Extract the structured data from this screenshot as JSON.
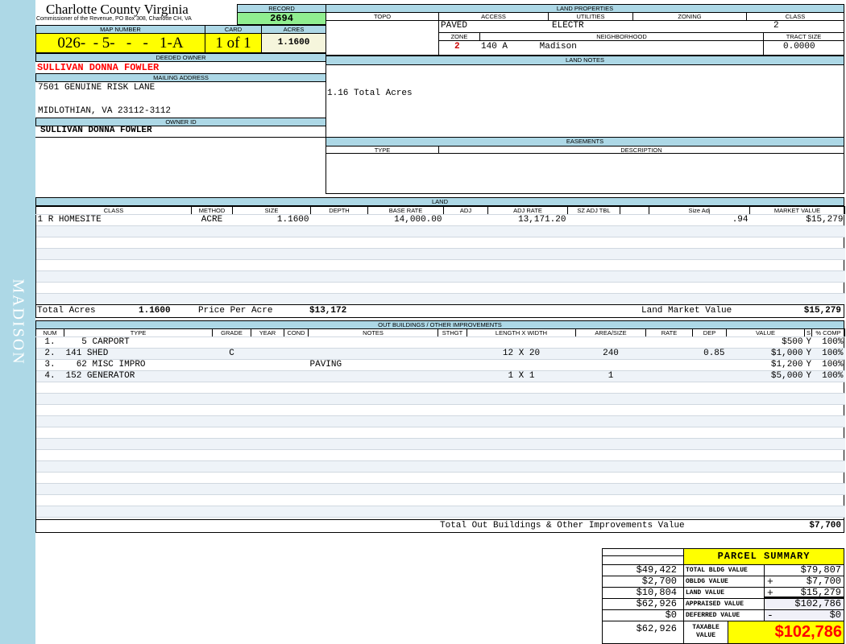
{
  "sidebar": {
    "district": "MADISON"
  },
  "header": {
    "title": "Charlotte County Virginia",
    "subtitle": "Commissioner of the Revenue, PO Box 308, Charlotte CH, VA"
  },
  "record": {
    "label": "RECORD",
    "value": "2694"
  },
  "map": {
    "label": "MAP NUMBER",
    "value": "026-  - 5-   -   -   1-A",
    "card_label": "CARD",
    "card": "1 of 1",
    "acres_label": "ACRES",
    "acres": "1.1600"
  },
  "owner": {
    "deeded_label": "DEEDED OWNER",
    "deeded": "SULLIVAN DONNA FOWLER",
    "mailing_label": "MAILING ADDRESS",
    "address1": "7501 GENUINE RISK LANE",
    "address2": "MIDLOTHIAN, VA 23112-3112",
    "owner_id_label": "OWNER ID",
    "owner_id": "SULLIVAN DONNA FOWLER"
  },
  "land_properties": {
    "label": "LAND PROPERTIES",
    "topo_label": "TOPO",
    "access_label": "ACCESS",
    "utilities_label": "UTILITIES",
    "zoning_label": "ZONING",
    "class_label": "CLASS",
    "access": "PAVED",
    "utilities": "ELECTR",
    "class": "2",
    "zone_label": "ZONE",
    "neighborhood_label": "NEIGHBORHOOD",
    "tract_label": "TRACT SIZE",
    "zone": "2",
    "neighborhood": "140 A      Madison",
    "tract": "0.0000"
  },
  "land_notes": {
    "label": "LAND NOTES",
    "text": "1.16 Total Acres"
  },
  "easements": {
    "label": "EASEMENTS",
    "type_label": "TYPE",
    "desc_label": "DESCRIPTION"
  },
  "land": {
    "label": "LAND",
    "columns": [
      "CLASS",
      "METHOD",
      "SIZE",
      "DEPTH",
      "BASE RATE",
      "ADJ",
      "ADJ RATE",
      "SZ ADJ TBL",
      "",
      "Size Adj",
      "MARKET VALUE"
    ],
    "rows": [
      [
        "1 R HOMESITE",
        "ACRE",
        "1.1600",
        "",
        "14,000.00",
        "",
        "13,171.20",
        "",
        "",
        ".94",
        "$15,279"
      ]
    ],
    "total_acres_label": "Total Acres",
    "total_acres": "1.1600",
    "ppa_label": "Price Per Acre",
    "ppa": "$13,172",
    "lmv_label": "Land Market Value",
    "lmv": "$15,279"
  },
  "outbuildings": {
    "label": "OUT BUILDINGS / OTHER IMPROVEMENTS",
    "columns": [
      "NUM",
      "TYPE",
      "GRADE",
      "YEAR",
      "COND",
      "NOTES",
      "STHGT",
      "LENGTH X WIDTH",
      "AREA/SIZE",
      "RATE",
      "DEP",
      "VALUE",
      "S",
      "% COMP"
    ],
    "rows": [
      [
        "1.",
        "   5 CARPORT",
        "",
        "",
        "",
        "",
        "",
        "",
        "",
        "",
        "",
        "$500",
        "Y",
        "100%"
      ],
      [
        "2.",
        "141 SHED",
        "C",
        "",
        "",
        "",
        "",
        "12 X 20",
        "240",
        "",
        "0.85",
        "$1,000",
        "Y",
        "100%"
      ],
      [
        "3.",
        "  62 MISC IMPRO",
        "",
        "",
        "",
        "PAVING",
        "",
        "",
        "",
        "",
        "",
        "$1,200",
        "Y",
        "100%"
      ],
      [
        "4.",
        "152 GENERATOR",
        "",
        "",
        "",
        "",
        "",
        "1 X 1",
        "1",
        "",
        "",
        "$5,000",
        "Y",
        "100%"
      ]
    ],
    "total_label": "Total Out Buildings & Other Improvements Value",
    "total": "$7,700"
  },
  "summary": {
    "title": "PARCEL SUMMARY",
    "rows": [
      {
        "prior": "$49,422",
        "label": "TOTAL BLDG VALUE",
        "op": "",
        "value": "$79,807"
      },
      {
        "prior": "$2,700",
        "label": "OBLDG VALUE",
        "op": "+",
        "value": "$7,700"
      },
      {
        "prior": "$10,804",
        "label": "LAND VALUE",
        "op": "+",
        "value": "$15,279"
      },
      {
        "prior": "$62,926",
        "label": "APPRAISED VALUE",
        "op": "",
        "value": "$102,786"
      },
      {
        "prior": "$0",
        "label": "DEFERRED VALUE",
        "op": "-",
        "value": "$0"
      }
    ],
    "taxable_prior": "$62,926",
    "taxable_label": "TAXABLE VALUE",
    "taxable": "$102,786"
  },
  "colors": {
    "header_blue": "#add8e6",
    "record_green": "#90ee90",
    "highlight_yellow": "#ffff00",
    "owner_red": "#ff0000"
  }
}
